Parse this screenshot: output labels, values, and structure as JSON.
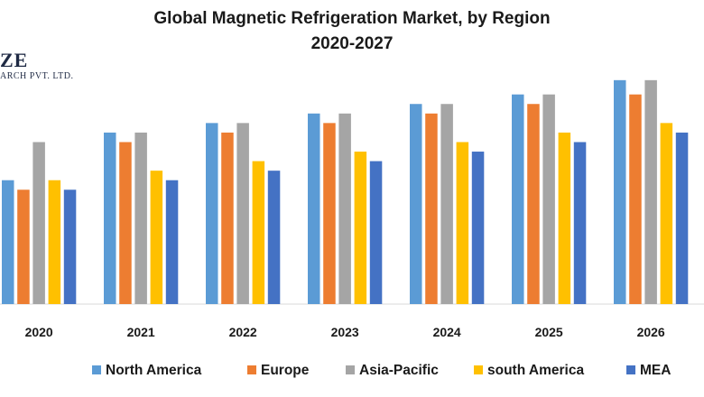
{
  "chart_data": {
    "type": "bar",
    "title": "Global Magnetic Refrigeration Market, by Region",
    "subtitle": "2020-2027",
    "categories": [
      "2020",
      "2021",
      "2022",
      "2023",
      "2024",
      "2025",
      "2026"
    ],
    "series": [
      {
        "name": "North America",
        "color": "#5B9BD5",
        "values": [
          13,
          18,
          19,
          20,
          21,
          22,
          23.5
        ]
      },
      {
        "name": "Europe",
        "color": "#ED7D31",
        "values": [
          12,
          17,
          18,
          19,
          20,
          21,
          22
        ]
      },
      {
        "name": "Asia-Pacific",
        "color": "#A5A5A5",
        "values": [
          17,
          18,
          19,
          20,
          21,
          22,
          23.5
        ]
      },
      {
        "name": "south America",
        "color": "#FFC000",
        "values": [
          13,
          14,
          15,
          16,
          17,
          18,
          19
        ]
      },
      {
        "name": "MEA",
        "color": "#4472C4",
        "values": [
          12,
          13,
          14,
          15,
          16,
          17,
          18
        ]
      }
    ],
    "ylim": [
      0,
      25
    ],
    "grid": false,
    "legend_position": "bottom"
  },
  "logo": {
    "line1": "ZE",
    "line2": "ARCH PVT. LTD."
  }
}
